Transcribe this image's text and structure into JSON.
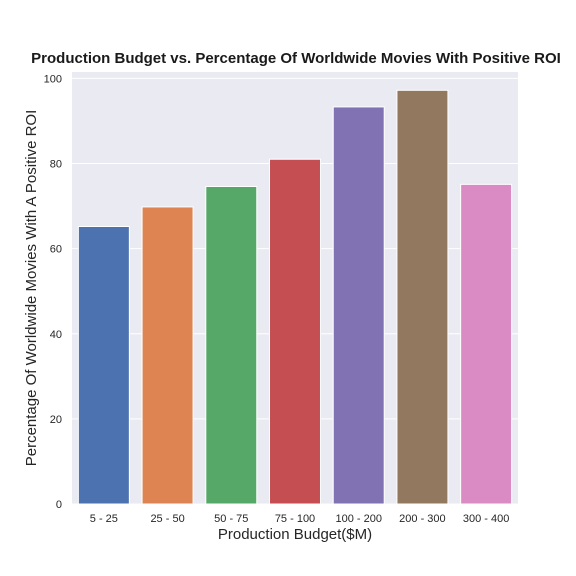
{
  "chart_data": {
    "type": "bar",
    "title": "Production Budget vs. Percentage Of Worldwide Movies With Positive ROI",
    "xlabel": "Production Budget($M)",
    "ylabel": "Percentage Of Worldwide Movies With A Positive ROI",
    "categories": [
      "5 - 25",
      "25 - 50",
      "50 - 75",
      "75 - 100",
      "100 - 200",
      "200 - 300",
      "300 - 400"
    ],
    "values": [
      65.2,
      69.8,
      74.6,
      81.0,
      93.3,
      97.2,
      75.1
    ],
    "ylim": [
      0,
      101.5
    ],
    "yticks": [
      0,
      20,
      40,
      60,
      80,
      100
    ],
    "grid": true,
    "legend": "none",
    "colors": [
      "#4c72b0",
      "#dd8452",
      "#55a868",
      "#c44e52",
      "#8172b3",
      "#937860",
      "#da8bc3"
    ],
    "background": "#eaeaf2"
  }
}
